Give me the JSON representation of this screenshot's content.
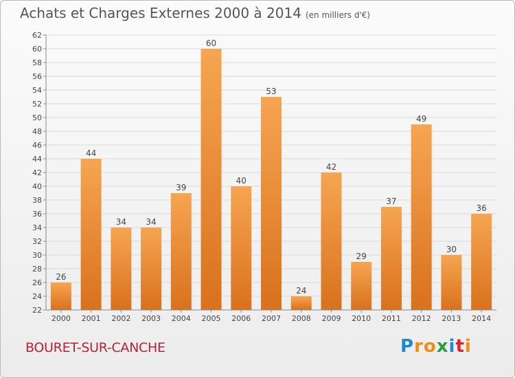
{
  "title": "Achats et Charges Externes 2000 à 2014",
  "subtitle": "(en milliers d'€)",
  "commune": "BOURET-SUR-CANCHE",
  "logo": {
    "letters": [
      "P",
      "r",
      "o",
      "x",
      "i",
      "t",
      "i"
    ],
    "colors": [
      "#1e88d0",
      "#f08a1c",
      "#f08a1c",
      "#2a9d3a",
      "#1e88d0",
      "#d8262b",
      "#f08a1c"
    ]
  },
  "chart_data": {
    "type": "bar",
    "categories": [
      "2000",
      "2001",
      "2002",
      "2003",
      "2004",
      "2005",
      "2006",
      "2007",
      "2008",
      "2009",
      "2010",
      "2011",
      "2012",
      "2013",
      "2014"
    ],
    "values": [
      26,
      44,
      34,
      34,
      39,
      60,
      40,
      53,
      24,
      42,
      29,
      37,
      49,
      30,
      36
    ],
    "ylim": [
      22,
      62
    ],
    "yticks": [
      22,
      24,
      26,
      28,
      30,
      32,
      34,
      36,
      38,
      40,
      42,
      44,
      46,
      48,
      50,
      52,
      54,
      56,
      58,
      60,
      62
    ],
    "grid": true,
    "colors": {
      "bar_light": "#f6a552",
      "bar_dark": "#d9711d",
      "grid": "#d9d9d9",
      "axis": "#888888"
    }
  }
}
